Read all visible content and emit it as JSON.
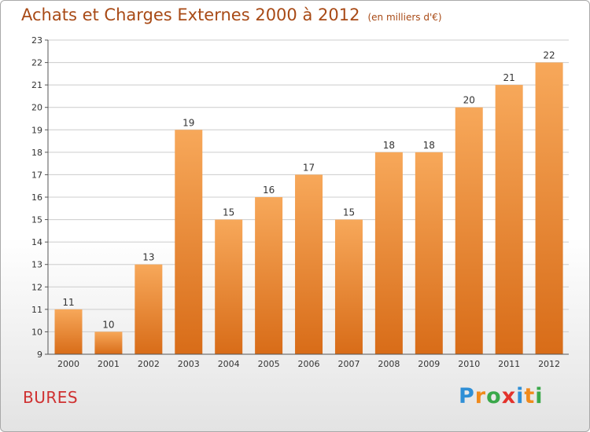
{
  "title": "Achats et Charges Externes 2000 à 2012",
  "subtitle": "(en milliers d'€)",
  "commune": "BURES",
  "logo": {
    "text": "Proxiti",
    "letter_colors": [
      "#2f8fd6",
      "#f08a1c",
      "#3aa84a",
      "#e3322b",
      "#2f8fd6",
      "#f08a1c",
      "#3aa84a"
    ]
  },
  "colors": {
    "title": "#a84a16",
    "commune": "#cf3131",
    "bar_top": "#f7a85a",
    "bar_bottom": "#d86c18",
    "axis": "#555555",
    "grid": "#cccccc"
  },
  "chart_data": {
    "type": "bar",
    "categories": [
      "2000",
      "2001",
      "2002",
      "2003",
      "2004",
      "2005",
      "2006",
      "2007",
      "2008",
      "2009",
      "2010",
      "2011",
      "2012"
    ],
    "values": [
      11,
      10,
      13,
      19,
      15,
      16,
      17,
      15,
      18,
      18,
      20,
      21,
      22
    ],
    "ylim": [
      9,
      23
    ],
    "yticks": [
      9,
      10,
      11,
      12,
      13,
      14,
      15,
      16,
      17,
      18,
      19,
      20,
      21,
      22,
      23
    ],
    "grid": true,
    "data_labels": true
  }
}
